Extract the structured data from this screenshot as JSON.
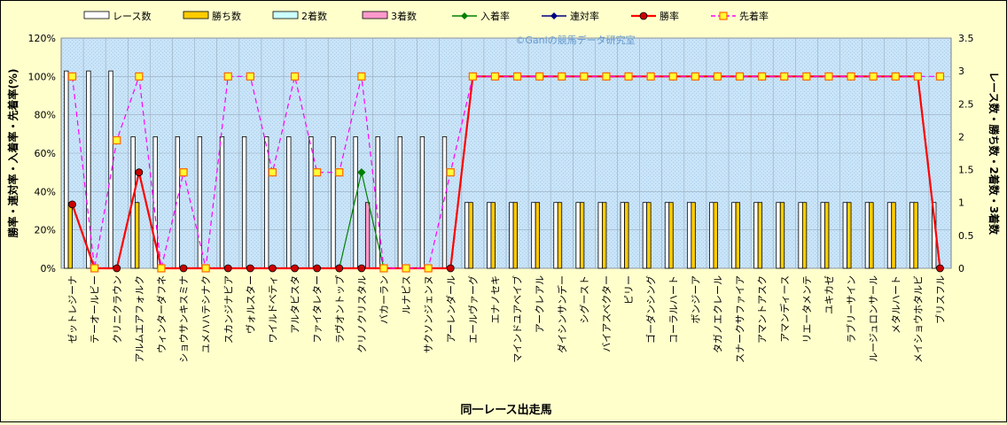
{
  "chart_data": {
    "type": "bar",
    "watermark": "©Ganiの競馬データ研究室",
    "xlabel": "同一レース出走馬",
    "ylabel_left": "勝率・連対率・入着率・先着率(%)",
    "ylabel_right": "レース数・勝ち数・2着数・3着数",
    "ylim_left": [
      0,
      120
    ],
    "yticks_left": [
      "0%",
      "20%",
      "40%",
      "60%",
      "80%",
      "100%",
      "120%"
    ],
    "ylim_right": [
      0,
      3.5
    ],
    "yticks_right": [
      "0",
      "0.5",
      "1",
      "1.5",
      "2",
      "2.5",
      "3",
      "3.5"
    ],
    "legend_position": "top",
    "grid": true,
    "categories": [
      "ゼットレジーナ",
      "テーオールビー",
      "クリニクラウン",
      "アルムエアフォルク",
      "ウィンターダフネ",
      "ショウサンキスミナ",
      "ユメハハテシナク",
      "スカンジナビア",
      "ヴォルスター",
      "ワイルドベティ",
      "アルタビスタ",
      "ファイタレター",
      "ラヴオントップ",
      "クリノクリスタル",
      "バカーラン",
      "ルナピス",
      "サクソンジェンヌ",
      "アーレンダール",
      "エールヴァーグ",
      "エナノセキ",
      "マインドユアベイブ",
      "アークレアル",
      "ダイシンサンデー",
      "シグースト",
      "バイアスベクター",
      "ピリー",
      "ゴーダンシング",
      "コーラルハート",
      "ボンジーア",
      "タガノエクレール",
      "スナークサファイア",
      "アマントアスク",
      "アマンディース",
      "リエータメンテ",
      "ユキカゼ",
      "ラブリーサイン",
      "ルージュロンサール",
      "メタルハート",
      "メイショウホタルビ",
      "ブリスフル"
    ],
    "series": [
      {
        "name": "レース数",
        "axis": "right",
        "kind": "bar",
        "color": "#ffffff",
        "values": [
          3,
          3,
          3,
          2,
          2,
          2,
          2,
          2,
          2,
          2,
          2,
          2,
          2,
          2,
          2,
          2,
          2,
          2,
          1,
          1,
          1,
          1,
          1,
          1,
          1,
          1,
          1,
          1,
          1,
          1,
          1,
          1,
          1,
          1,
          1,
          1,
          1,
          1,
          1,
          1
        ]
      },
      {
        "name": "勝ち数",
        "axis": "right",
        "kind": "bar",
        "color": "#ffcc00",
        "values": [
          1,
          0,
          0,
          1,
          0,
          0,
          0,
          0,
          0,
          0,
          0,
          0,
          0,
          0,
          0,
          0,
          0,
          0,
          1,
          1,
          1,
          1,
          1,
          1,
          1,
          1,
          1,
          1,
          1,
          1,
          1,
          1,
          1,
          1,
          1,
          1,
          1,
          1,
          1,
          0
        ]
      },
      {
        "name": "2着数",
        "axis": "right",
        "kind": "bar",
        "color": "#ccffff",
        "values": [
          0,
          0,
          0,
          0,
          0,
          0,
          0,
          0,
          0,
          0,
          0,
          0,
          0,
          0,
          0,
          0,
          0,
          0,
          0,
          0,
          0,
          0,
          0,
          0,
          0,
          0,
          0,
          0,
          0,
          0,
          0,
          0,
          0,
          0,
          0,
          0,
          0,
          0,
          0,
          0
        ]
      },
      {
        "name": "3着数",
        "axis": "right",
        "kind": "bar",
        "color": "#ff99cc",
        "values": [
          0,
          0,
          0,
          0,
          0,
          0,
          0,
          0,
          0,
          0,
          0,
          0,
          0,
          1,
          0,
          0,
          0,
          0,
          0,
          0,
          0,
          0,
          0,
          0,
          0,
          0,
          0,
          0,
          0,
          0,
          0,
          0,
          0,
          0,
          0,
          0,
          0,
          0,
          0,
          0
        ]
      },
      {
        "name": "入着率",
        "axis": "left",
        "kind": "line",
        "color": "#008000",
        "marker": "diamond",
        "values": [
          null,
          null,
          null,
          null,
          null,
          null,
          null,
          null,
          null,
          null,
          null,
          null,
          0,
          50,
          0,
          null,
          null,
          null,
          null,
          null,
          null,
          null,
          null,
          null,
          null,
          null,
          null,
          null,
          null,
          null,
          null,
          null,
          null,
          null,
          null,
          null,
          null,
          null,
          null,
          null
        ]
      },
      {
        "name": "連対率",
        "axis": "left",
        "kind": "line",
        "color": "#000080",
        "marker": "diamond",
        "values": [
          null,
          null,
          null,
          null,
          null,
          null,
          null,
          null,
          null,
          null,
          null,
          null,
          null,
          null,
          null,
          null,
          null,
          null,
          null,
          null,
          null,
          null,
          null,
          null,
          null,
          null,
          null,
          null,
          null,
          null,
          null,
          null,
          null,
          null,
          null,
          null,
          null,
          null,
          null,
          null
        ]
      },
      {
        "name": "勝率",
        "axis": "left",
        "kind": "line",
        "color": "#ff0000",
        "marker": "circle",
        "values": [
          33.3,
          0,
          0,
          50,
          0,
          0,
          0,
          0,
          0,
          0,
          0,
          0,
          0,
          0,
          0,
          0,
          0,
          0,
          100,
          100,
          100,
          100,
          100,
          100,
          100,
          100,
          100,
          100,
          100,
          100,
          100,
          100,
          100,
          100,
          100,
          100,
          100,
          100,
          100,
          0
        ]
      },
      {
        "name": "先着率",
        "axis": "left",
        "kind": "dashed-line",
        "color": "#ff00ff",
        "marker": "square",
        "values": [
          100,
          0,
          66.7,
          100,
          0,
          50,
          0,
          100,
          100,
          50,
          100,
          50,
          50,
          100,
          0,
          0,
          0,
          50,
          100,
          100,
          100,
          100,
          100,
          100,
          100,
          100,
          100,
          100,
          100,
          100,
          100,
          100,
          100,
          100,
          100,
          100,
          100,
          100,
          100,
          100
        ]
      }
    ]
  }
}
